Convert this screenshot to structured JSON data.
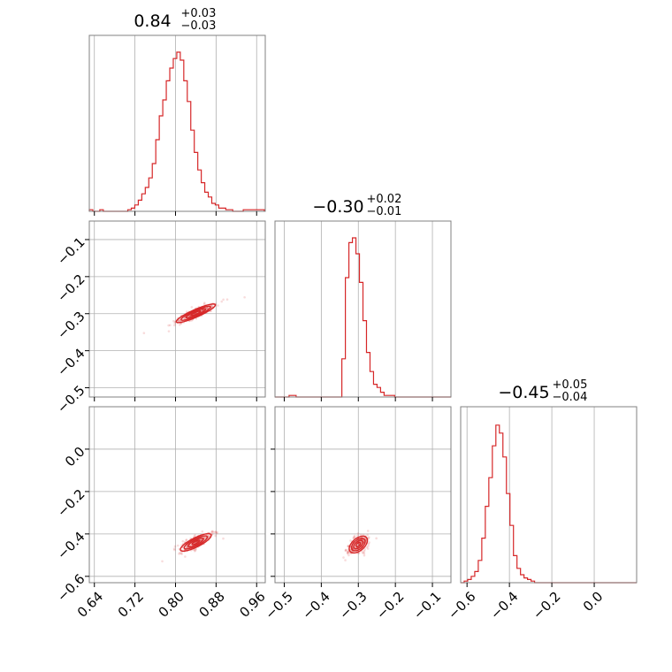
{
  "colors": {
    "accent": "#d62728",
    "grid": "#b0b0b0",
    "frame": "#808080"
  },
  "chart_data": {
    "type": "corner",
    "grid": true,
    "parameters": [
      {
        "title": {
          "median": "0.84",
          "plus": "+0.03",
          "minus": "−0.03"
        },
        "range": [
          0.63,
          0.977
        ],
        "ticks": [
          0.64,
          0.72,
          0.8,
          0.88,
          0.96
        ],
        "tick_labels": [
          "0.64",
          "0.72",
          "0.80",
          "0.88",
          "0.96"
        ],
        "histogram": {
          "bin_start": 0.63,
          "bin_width": 0.0069,
          "counts": [
            0.01,
            0,
            0,
            0.01,
            0,
            0,
            0,
            0,
            0,
            0,
            0,
            0.01,
            0.02,
            0.04,
            0.07,
            0.11,
            0.15,
            0.21,
            0.3,
            0.45,
            0.6,
            0.7,
            0.82,
            0.9,
            0.96,
            1.0,
            0.95,
            0.82,
            0.69,
            0.51,
            0.37,
            0.26,
            0.18,
            0.12,
            0.09,
            0.05,
            0.04,
            0.02,
            0.02,
            0.01,
            0.01,
            0,
            0,
            0,
            0.01,
            0.01,
            0.01,
            0.01,
            0.01,
            0.01
          ]
        }
      },
      {
        "title": {
          "median": "−0.30",
          "plus": "+0.02",
          "minus": "−0.01"
        },
        "range": [
          -0.525,
          -0.05
        ],
        "ticks": [
          -0.5,
          -0.4,
          -0.3,
          -0.2,
          -0.1
        ],
        "tick_labels": [
          "−0.5",
          "−0.4",
          "−0.3",
          "−0.2",
          "−0.1"
        ],
        "histogram": {
          "bin_start": -0.525,
          "bin_width": 0.0095,
          "counts": [
            0,
            0,
            0,
            0,
            0.01,
            0.01,
            0,
            0,
            0,
            0,
            0,
            0,
            0,
            0,
            0,
            0,
            0,
            0,
            0,
            0.24,
            0.75,
            0.97,
            1.0,
            0.9,
            0.72,
            0.48,
            0.28,
            0.16,
            0.08,
            0.06,
            0.03,
            0.01,
            0.01,
            0.01,
            0,
            0,
            0,
            0,
            0,
            0,
            0,
            0,
            0,
            0,
            0,
            0,
            0,
            0,
            0,
            0
          ]
        }
      },
      {
        "title": {
          "median": "−0.45",
          "plus": "+0.05",
          "minus": "−0.04"
        },
        "range": [
          -0.63,
          0.2
        ],
        "ticks": [
          -0.6,
          -0.4,
          -0.2,
          0.0
        ],
        "y_ticks": [
          -0.6,
          -0.4,
          -0.2,
          0.0
        ],
        "tick_labels": [
          "−0.6",
          "−0.4",
          "−0.2",
          "0.0"
        ],
        "histogram": {
          "bin_start": -0.63,
          "bin_width": 0.0166,
          "counts": [
            0,
            0.01,
            0.02,
            0.04,
            0.07,
            0.14,
            0.28,
            0.48,
            0.66,
            0.86,
            0.99,
            0.94,
            0.79,
            0.56,
            0.36,
            0.17,
            0.09,
            0.05,
            0.03,
            0.02,
            0.01,
            0,
            0,
            0,
            0,
            0,
            0,
            0,
            0,
            0,
            0,
            0,
            0,
            0,
            0,
            0,
            0,
            0,
            0,
            0,
            0,
            0,
            0,
            0,
            0,
            0,
            0,
            0,
            0,
            0
          ]
        }
      }
    ],
    "correlations": [
      {
        "x_param": 0,
        "y_param": 1,
        "intercept": -0.299,
        "slope": 0.62,
        "spread_along": 0.0225,
        "spread_across": 0.0048
      },
      {
        "x_param": 0,
        "y_param": 2,
        "intercept": -0.44,
        "slope": 1.45,
        "spread_along": 0.0245,
        "spread_across": 0.0075
      },
      {
        "x_param": 1,
        "y_param": 2,
        "intercept": -0.45,
        "slope": 2.4,
        "spread_along": 0.021,
        "spread_across": 0.01
      }
    ]
  }
}
